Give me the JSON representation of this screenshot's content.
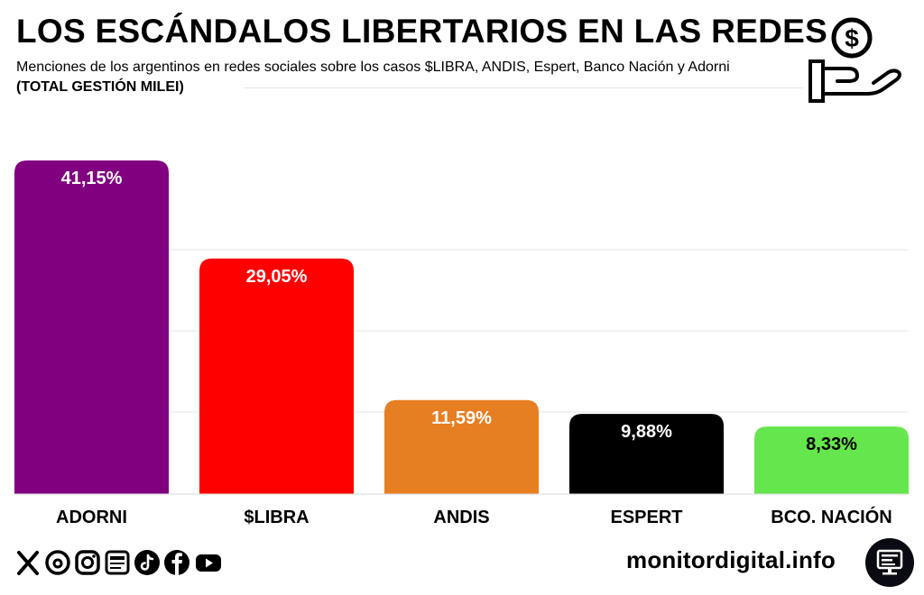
{
  "header": {
    "title": "LOS ESCÁNDALOS LIBERTARIOS EN LAS REDES",
    "subtitle_main": "Menciones de los argentinos en redes sociales sobre los casos $LIBRA, ANDIS, Espert, Banco Nación y Adorni",
    "subtitle_bold": "(TOTAL GESTIÓN MILEI)",
    "icon": "money-hand-icon"
  },
  "chart_data": {
    "type": "bar",
    "categories": [
      "ADORNI",
      "$LIBRA",
      "ANDIS",
      "ESPERT",
      "BCO. NACIÓN"
    ],
    "values": [
      41.15,
      29.05,
      11.59,
      9.88,
      8.33
    ],
    "data_labels": [
      "41,15%",
      "29,05%",
      "11,59%",
      "9,88%",
      "8,33%"
    ],
    "colors": [
      "#800080",
      "#ff0000",
      "#e67e22",
      "#000000",
      "#66e64d"
    ],
    "label_colors": [
      "#ffffff",
      "#ffffff",
      "#ffffff",
      "#ffffff",
      "#000000"
    ],
    "ylim": [
      0,
      41.15
    ],
    "grid": true,
    "legend": "none",
    "title": "",
    "xlabel": "",
    "ylabel": ""
  },
  "footer": {
    "social_icons": [
      "x-icon",
      "threads-icon",
      "instagram-icon",
      "newsletter-icon",
      "tiktok-icon",
      "facebook-icon",
      "youtube-icon"
    ],
    "brand": "monitordigital.info",
    "brand_icon": "monitor-icon"
  }
}
